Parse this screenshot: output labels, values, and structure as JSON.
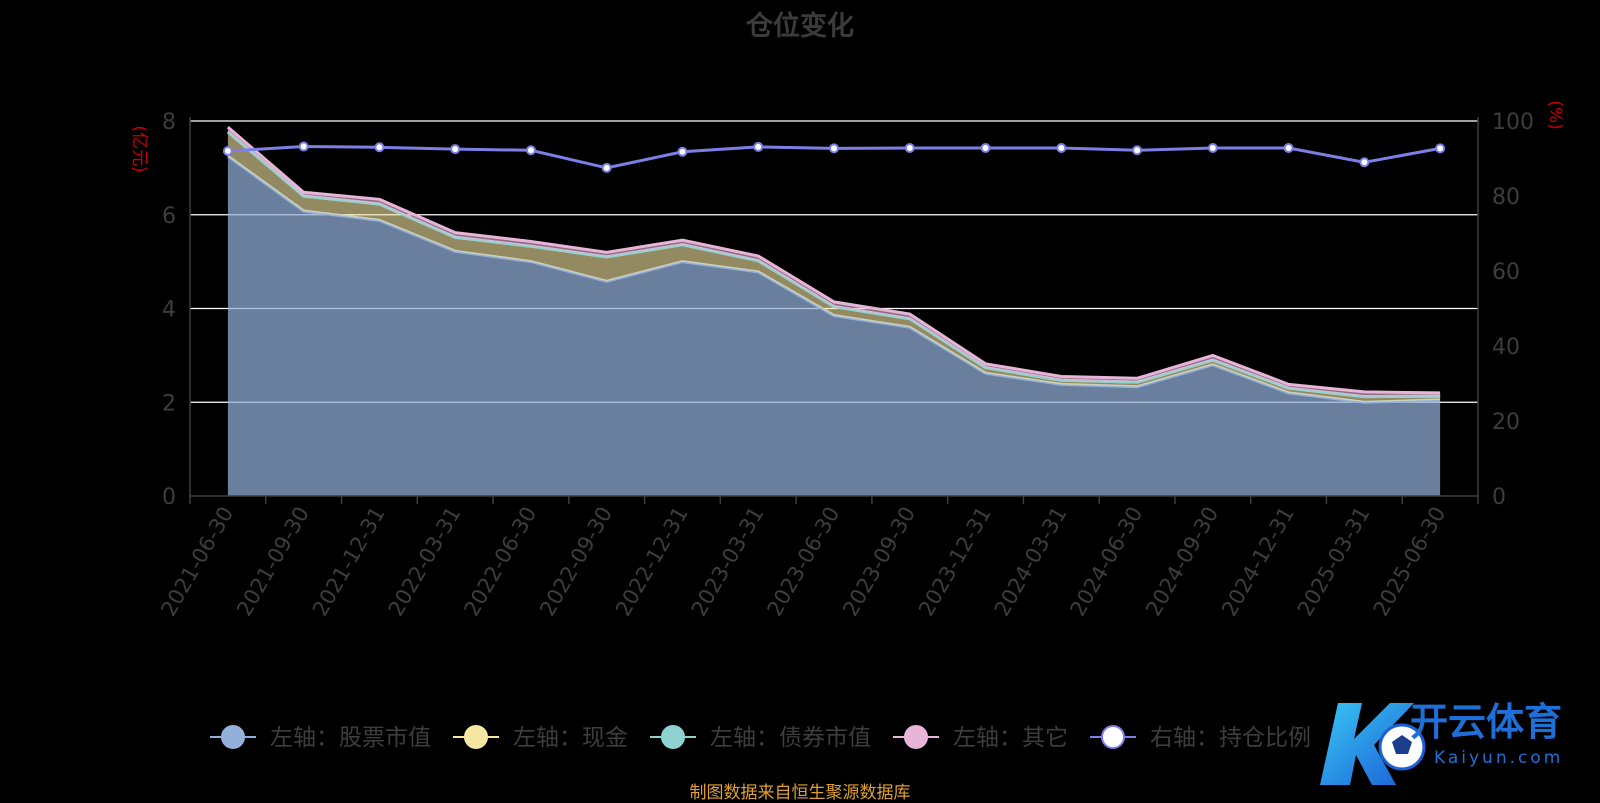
{
  "colors": {
    "background": "#000000",
    "stock": "#93b0db",
    "cash": "#f5e6a2",
    "bond": "#8fd3d0",
    "other": "#e8b4d8",
    "ratio": "#7b7fe6",
    "axis_unit": "#cc0000",
    "gridline": "#ffffff",
    "axis_text": "#3d3d3d",
    "footer": "#e0a030"
  },
  "chart_data": {
    "type": "area",
    "title": "仓位变化",
    "x": [
      "2021-06-30",
      "2021-09-30",
      "2021-12-31",
      "2022-03-31",
      "2022-06-30",
      "2022-09-30",
      "2022-12-31",
      "2023-03-31",
      "2023-06-30",
      "2023-09-30",
      "2023-12-31",
      "2024-03-31",
      "2024-06-30",
      "2024-09-30",
      "2024-12-31",
      "2025-03-31",
      "2025-06-30"
    ],
    "left_axis": {
      "unit": "亿元",
      "ylim": [
        0,
        8
      ],
      "ticks": [
        "0",
        "2",
        "4",
        "6",
        "8"
      ]
    },
    "right_axis": {
      "unit": "%",
      "ylim": [
        0,
        100
      ],
      "ticks": [
        "0",
        "20",
        "40",
        "60",
        "80",
        "100"
      ]
    },
    "series": [
      {
        "name": "左轴：股票市值",
        "axis": "left",
        "kind": "stacked-area",
        "values": [
          7.25,
          6.08,
          5.88,
          5.22,
          5.0,
          4.58,
          5.0,
          4.78,
          3.85,
          3.6,
          2.62,
          2.38,
          2.33,
          2.8,
          2.2,
          2.0,
          2.05
        ]
      },
      {
        "name": "左轴：现金",
        "axis": "left",
        "kind": "stacked-area",
        "values": [
          0.52,
          0.32,
          0.35,
          0.3,
          0.33,
          0.52,
          0.36,
          0.24,
          0.19,
          0.18,
          0.12,
          0.09,
          0.1,
          0.1,
          0.1,
          0.12,
          0.08
        ]
      },
      {
        "name": "左轴：债券市值",
        "axis": "left",
        "kind": "stacked-area",
        "values": [
          0,
          0,
          0,
          0,
          0,
          0,
          0,
          0,
          0,
          0,
          0,
          0,
          0,
          0,
          0,
          0,
          0
        ]
      },
      {
        "name": "左轴：其它",
        "axis": "left",
        "kind": "stacked-area",
        "values": [
          0.1,
          0.08,
          0.1,
          0.1,
          0.1,
          0.1,
          0.1,
          0.1,
          0.1,
          0.1,
          0.08,
          0.08,
          0.08,
          0.1,
          0.08,
          0.1,
          0.07
        ]
      },
      {
        "name": "右轴：持仓比例",
        "axis": "right",
        "kind": "line",
        "values": [
          92,
          93.2,
          93,
          92.5,
          92.2,
          87.5,
          91.8,
          93.1,
          92.7,
          92.8,
          92.8,
          92.8,
          92.2,
          92.8,
          92.8,
          89,
          92.7
        ]
      }
    ],
    "legend": {
      "position": "bottom"
    },
    "grid": true
  },
  "footer": {
    "source": "制图数据来自恒生聚源数据库"
  },
  "watermark": {
    "brand": "开云体育",
    "domain": "Kaiyun.com"
  }
}
